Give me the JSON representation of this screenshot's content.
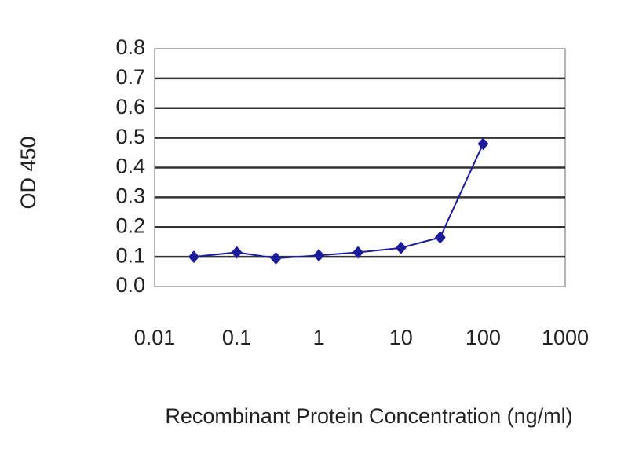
{
  "chart_data": {
    "type": "line",
    "x_label": "Recombinant Protein Concentration (ng/ml)",
    "y_label": "OD 450",
    "x": [
      0.03,
      0.1,
      0.3,
      1,
      3,
      10,
      30,
      100
    ],
    "series": [
      {
        "color": "#1c1c9a",
        "values": [
          0.1,
          0.115,
          0.095,
          0.105,
          0.115,
          0.13,
          0.165,
          0.48
        ]
      }
    ],
    "xscale": "log",
    "xlim": [
      0.01,
      1000
    ],
    "xticks": [
      0.01,
      0.1,
      1,
      10,
      100,
      1000
    ],
    "ylim": [
      0,
      0.8
    ],
    "yticks": [
      {
        "value": 0,
        "label": "0.0"
      },
      0.1,
      0.2,
      0.3,
      0.4,
      0.5,
      0.6,
      0.7,
      0.8
    ],
    "grid": true
  }
}
